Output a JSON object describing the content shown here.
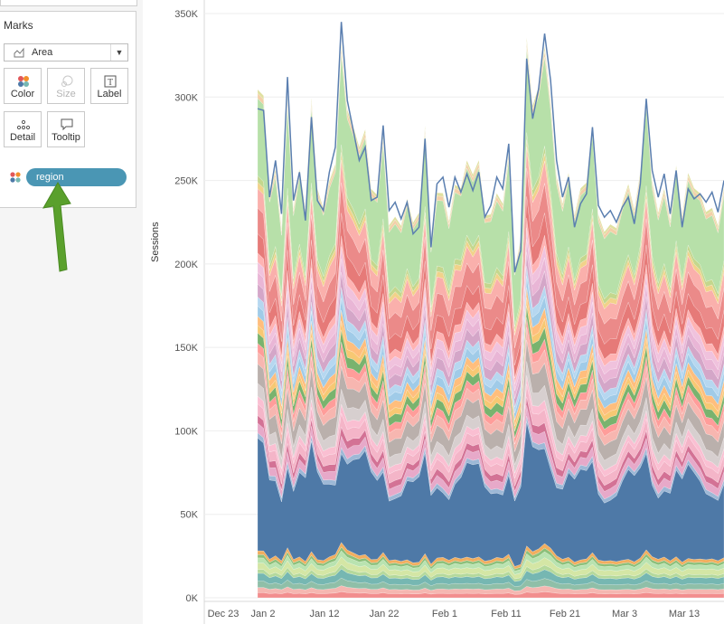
{
  "marks": {
    "title": "Marks",
    "mark_type": "Area",
    "buttons": [
      {
        "label": "Color",
        "enabled": true,
        "icon": "color-dots-icon"
      },
      {
        "label": "Size",
        "enabled": false,
        "icon": "size-icon"
      },
      {
        "label": "Label",
        "enabled": true,
        "icon": "label-icon"
      },
      {
        "label": "Detail",
        "enabled": true,
        "icon": "detail-dots-icon"
      },
      {
        "label": "Tooltip",
        "enabled": true,
        "icon": "tooltip-icon"
      }
    ],
    "color_pill": "region"
  },
  "annotation": {
    "arrow_color": "#5aa02c",
    "points_to": "region"
  },
  "chart_data": {
    "type": "area",
    "stacked": true,
    "ylabel": "Sessions",
    "ylim": [
      0,
      350000
    ],
    "y_ticks": [
      "0K",
      "50K",
      "100K",
      "150K",
      "200K",
      "250K",
      "300K",
      "350K"
    ],
    "x_ticks": [
      "Dec 23",
      "Jan 2",
      "Jan 12",
      "Jan 22",
      "Feb 1",
      "Feb 11",
      "Feb 21",
      "Mar 3",
      "Mar 13"
    ],
    "x_start": "2017-12-28",
    "x_end": "2018-03-19",
    "grid": "horizontal",
    "legend": "none",
    "total_series_approx": [
      293000,
      292000,
      240000,
      262000,
      230000,
      312000,
      238000,
      255000,
      226000,
      288000,
      238000,
      232000,
      255000,
      270000,
      345000,
      298000,
      280000,
      262000,
      270000,
      238000,
      240000,
      283000,
      232000,
      237000,
      227000,
      237000,
      218000,
      222000,
      275000,
      210000,
      248000,
      252000,
      234000,
      252000,
      243000,
      254000,
      244000,
      255000,
      228000,
      235000,
      252000,
      245000,
      272000,
      195000,
      208000,
      323000,
      287000,
      305000,
      338000,
      310000,
      262000,
      240000,
      252000,
      222000,
      236000,
      242000,
      282000,
      235000,
      228000,
      232000,
      225000,
      234000,
      240000,
      224000,
      248000,
      299000,
      256000,
      240000,
      254000,
      230000,
      256000,
      222000,
      245000,
      239000,
      242000,
      237000,
      243000,
      231000,
      250000
    ],
    "layer_colors": [
      "#f28e8e",
      "#f5b7b1",
      "#8fbfa8",
      "#76b7b2",
      "#b5d99c",
      "#d4e6a5",
      "#b9e3b0",
      "#8cc07a",
      "#f1ae5f",
      "#4e79a7",
      "#9db8d6",
      "#e7a9c9",
      "#d37295",
      "#f4b5c8",
      "#fabfd2",
      "#d7cfcf",
      "#bab0ac",
      "#f7b6b0",
      "#ff9d9a",
      "#79b36e",
      "#f7c873",
      "#ffbe7d",
      "#a0cbe8",
      "#b6d7f0",
      "#d4a6c8",
      "#e9b6d6",
      "#f0c2dd",
      "#ffb3b3",
      "#e67a78",
      "#eb8a89",
      "#fab0ac",
      "#f1d28a",
      "#c4d78d",
      "#b7e0a9",
      "#f3cfa8",
      "#e0e0a0",
      "#6f93c2"
    ]
  }
}
